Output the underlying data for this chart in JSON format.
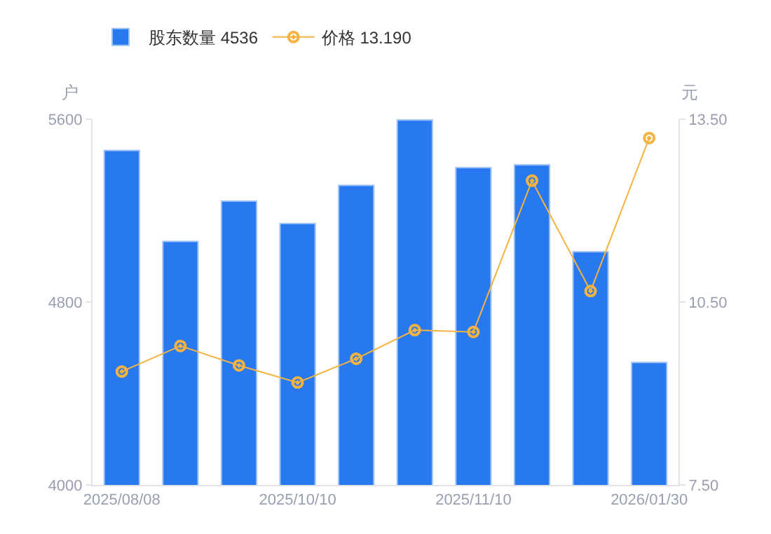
{
  "chart_data": {
    "type": "bar",
    "categories": [
      "2025/08/08",
      null,
      null,
      "2025/10/10",
      null,
      null,
      "2025/11/10",
      null,
      null,
      "2026/01/30"
    ],
    "ylabel": "户",
    "y2label": "元",
    "series": [
      {
        "name": "股东数量 4536",
        "color": "#2878f0",
        "values": [
          5463,
          5065,
          5241,
          5143,
          5310,
          5596,
          5388,
          5400,
          5020,
          4536
        ]
      },
      {
        "name": "价格 13.190",
        "type": "line",
        "axis": "y2",
        "color": "#f5b342",
        "marker": "circle",
        "values": [
          9.36,
          9.78,
          9.46,
          9.18,
          9.57,
          10.04,
          10.01,
          12.49,
          10.68,
          13.19
        ]
      }
    ],
    "ylim": [
      4000,
      5600
    ],
    "yticks": [
      4000,
      4800,
      5600
    ],
    "y2lim": [
      7.5,
      13.5
    ],
    "y2ticks": [
      {
        "value": 7.5,
        "label": "7.50"
      },
      {
        "value": 10.5,
        "label": "10.50"
      },
      {
        "value": 13.5,
        "label": "13.50"
      }
    ],
    "grid": false,
    "legend": "top left"
  }
}
